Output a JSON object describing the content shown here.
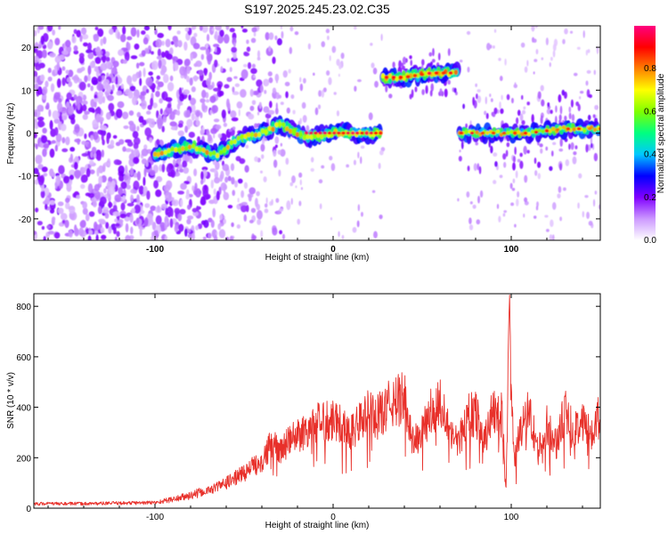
{
  "title": "S197.2025.245.23.02.C35",
  "chart_data": [
    {
      "type": "heatmap",
      "title": "S197.2025.245.23.02.C35",
      "xlabel": "Height of straight line (km)",
      "ylabel": "Frequency (Hz)",
      "xlim": [
        -168,
        150
      ],
      "ylim": [
        -25,
        25
      ],
      "x_ticks": [
        "-100",
        "0",
        "100"
      ],
      "y_ticks": [
        "20",
        "10",
        "0",
        "-10",
        "-20"
      ],
      "colorbar": {
        "label": "Normalized spectral amplitude",
        "range": [
          0,
          1
        ],
        "ticks": [
          "0.0",
          "0.2",
          "0.4",
          "0.6",
          "0.8"
        ],
        "colors": [
          "#ffffff",
          "#cc99ff",
          "#8000ff",
          "#0000ff",
          "#00c8ff",
          "#00ff80",
          "#80ff00",
          "#ffff00",
          "#ff8000",
          "#ff0000",
          "#ff0080"
        ]
      },
      "features": [
        {
          "name": "noise region",
          "x_range": [
            -168,
            -95
          ],
          "frequency_range": [
            -25,
            25
          ],
          "level": 0.15
        },
        {
          "name": "main tone",
          "points": [
            [
              -100,
              -5
            ],
            [
              -80,
              -3
            ],
            [
              -65,
              -5
            ],
            [
              -52,
              -1
            ],
            [
              -40,
              0
            ],
            [
              -30,
              2
            ],
            [
              -20,
              0
            ],
            [
              -15,
              -1
            ],
            [
              0,
              0
            ],
            [
              27,
              0
            ]
          ],
          "level": 0.85
        },
        {
          "name": "gap",
          "x_range": [
            28,
            70
          ],
          "frequency_range": [
            -25,
            12
          ]
        },
        {
          "name": "shifted tone",
          "points": [
            [
              28,
              13
            ],
            [
              40,
              13
            ],
            [
              55,
              14
            ],
            [
              70,
              14
            ]
          ],
          "level": 0.8
        },
        {
          "name": "recovered tone",
          "points": [
            [
              71,
              0
            ],
            [
              90,
              0
            ],
            [
              110,
              0
            ],
            [
              130,
              1
            ],
            [
              150,
              1
            ]
          ],
          "level": 0.75
        }
      ]
    },
    {
      "type": "line",
      "xlabel": "Height of straight line (km)",
      "ylabel": "SNR (10 * v/v)",
      "xlim": [
        -168,
        150
      ],
      "ylim": [
        0,
        850
      ],
      "x_ticks": [
        "-100",
        "0",
        "100"
      ],
      "y_ticks": [
        "0",
        "200",
        "400",
        "600",
        "800"
      ],
      "series": [
        {
          "name": "SNR",
          "color": "#e8302a",
          "x": [
            -168,
            -140,
            -120,
            -100,
            -90,
            -80,
            -70,
            -60,
            -50,
            -40,
            -35,
            -30,
            -20,
            -10,
            0,
            10,
            15,
            20,
            25,
            30,
            35,
            40,
            45,
            50,
            55,
            60,
            65,
            70,
            75,
            80,
            85,
            90,
            95,
            97,
            98,
            99,
            100,
            102,
            105,
            110,
            115,
            120,
            125,
            130,
            135,
            140,
            145,
            150
          ],
          "values": [
            18,
            18,
            20,
            22,
            35,
            50,
            70,
            100,
            140,
            190,
            250,
            230,
            290,
            330,
            360,
            300,
            340,
            380,
            360,
            400,
            420,
            440,
            260,
            300,
            380,
            420,
            330,
            250,
            360,
            380,
            270,
            390,
            370,
            50,
            380,
            830,
            400,
            200,
            300,
            390,
            220,
            330,
            250,
            380,
            300,
            360,
            280,
            380
          ]
        }
      ]
    }
  ]
}
